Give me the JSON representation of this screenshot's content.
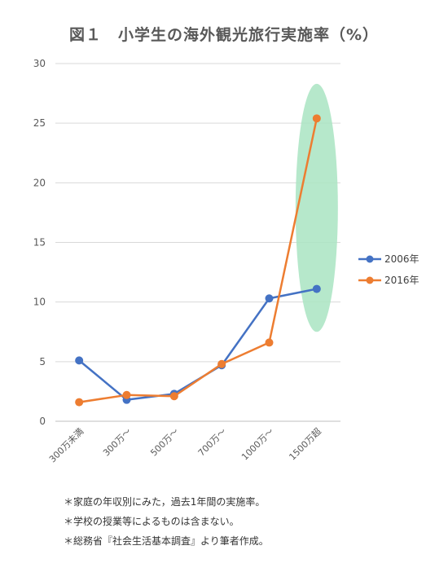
{
  "chart_data": {
    "type": "line",
    "title": "図１　小学生の海外観光旅行実施率（%）",
    "categories": [
      "300万未満",
      "300万～",
      "500万～",
      "700万～",
      "1000万～",
      "1500万超"
    ],
    "series": [
      {
        "name": "2006年",
        "values": [
          5.1,
          1.8,
          2.3,
          4.7,
          10.3,
          11.1
        ],
        "color": "#4472C4"
      },
      {
        "name": "2016年",
        "values": [
          1.6,
          2.2,
          2.1,
          4.8,
          6.6,
          25.4
        ],
        "color": "#ED7D31"
      }
    ],
    "ylim": [
      0,
      30
    ],
    "yticks": [
      0,
      5,
      10,
      15,
      20,
      25,
      30
    ],
    "grid": true,
    "legend_position": "right",
    "highlight": {
      "category": "1500万超",
      "y_range": [
        7.5,
        28.3
      ],
      "color": "#A9E4C2"
    }
  },
  "notes": [
    "＊家庭の年収別にみた，過去1年間の実施率。",
    "＊学校の授業等によるものは含まない。",
    "＊総務省『社会生活基本調査』より筆者作成。"
  ]
}
